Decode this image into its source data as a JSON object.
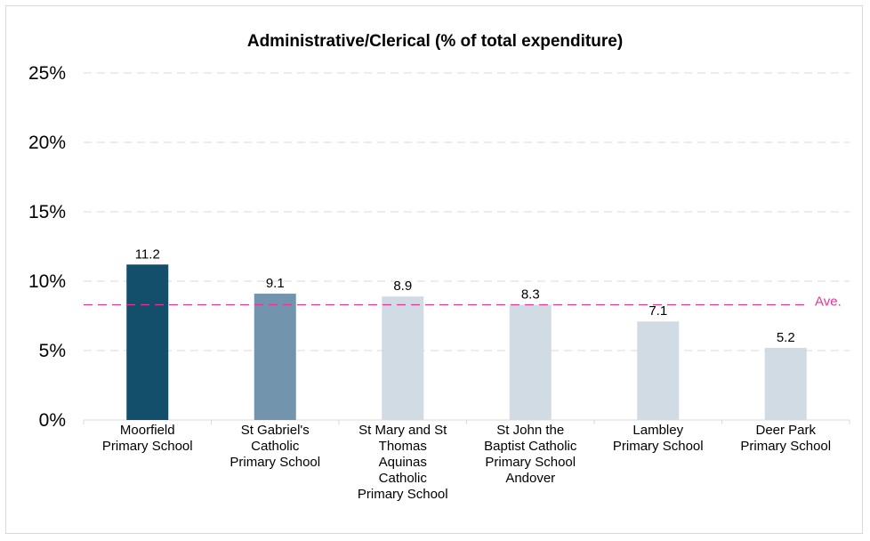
{
  "chart_data": {
    "type": "bar",
    "title": "Administrative/Clerical (% of total expenditure)",
    "xlabel": "",
    "ylabel": "",
    "ylim": [
      0,
      25
    ],
    "yticks": [
      0,
      5,
      10,
      15,
      20,
      25
    ],
    "ytick_labels": [
      "0%",
      "5%",
      "10%",
      "15%",
      "20%",
      "25%"
    ],
    "grid": true,
    "categories": [
      [
        "Moorfield",
        "Primary School"
      ],
      [
        "St Gabriel's",
        "Catholic",
        "Primary School"
      ],
      [
        "St Mary and St",
        "Thomas",
        "Aquinas",
        "Catholic",
        "Primary School"
      ],
      [
        "St John the",
        "Baptist Catholic",
        "Primary School",
        "Andover"
      ],
      [
        "Lambley",
        "Primary School"
      ],
      [
        "Deer Park",
        "Primary School"
      ]
    ],
    "values": [
      11.2,
      9.1,
      8.9,
      8.3,
      7.1,
      5.2
    ],
    "data_labels": [
      "11.2",
      "9.1",
      "8.9",
      "8.3",
      "7.1",
      "5.2"
    ],
    "bar_colors": [
      "#134f6b",
      "#7295ad",
      "#d0dbe3",
      "#d0dbe3",
      "#d0dbe3",
      "#d0dbe3"
    ],
    "average": {
      "value": 8.3,
      "label": "Ave.",
      "color": "#e0379a"
    },
    "grid_color": "#d9d9d9",
    "text_color": "#000000"
  }
}
